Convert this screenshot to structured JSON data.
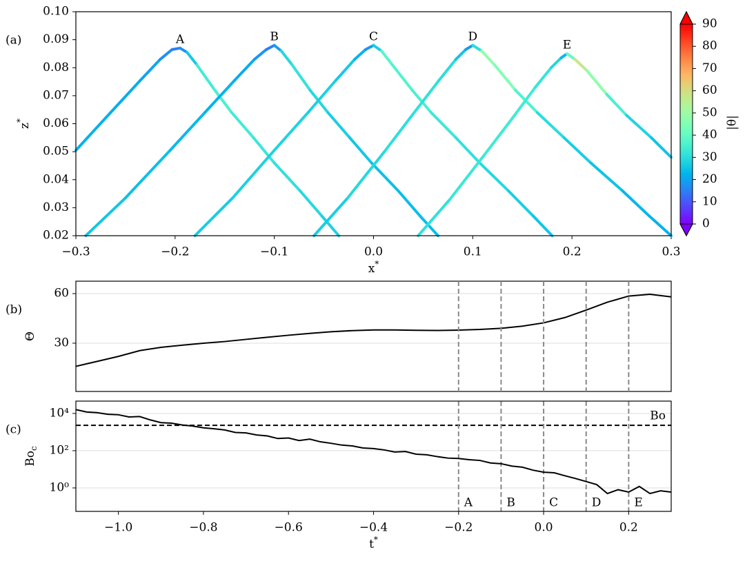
{
  "chart_data": [
    {
      "type": "colored_line",
      "panel_label": "(a)",
      "xlabel": {
        "text": "x",
        "sup": "*"
      },
      "ylabel": {
        "text": "z",
        "sup": "*"
      },
      "xlim": [
        -0.3,
        0.3
      ],
      "ylim": [
        0.02,
        0.1
      ],
      "xticks": [
        {
          "value": -0.3,
          "label": "−0.3"
        },
        {
          "value": -0.2,
          "label": "−0.2"
        },
        {
          "value": -0.1,
          "label": "−0.1"
        },
        {
          "value": 0,
          "label": "0.0"
        },
        0.1,
        0.2,
        0.3
      ],
      "yticks": [
        0.02,
        0.03,
        0.04,
        0.05,
        0.06,
        0.07,
        0.08,
        0.09,
        {
          "value": 0.1,
          "label": "0.10"
        }
      ],
      "series": [
        {
          "name": "A",
          "x": [
            -0.3,
            -0.265,
            -0.235,
            -0.215,
            -0.203,
            -0.195,
            -0.188,
            -0.178,
            -0.16,
            -0.143,
            -0.121,
            -0.1,
            -0.074,
            -0.052,
            -0.035
          ],
          "values": [
            0.0505,
            0.064,
            0.0755,
            0.083,
            0.0865,
            0.087,
            0.0855,
            0.081,
            0.072,
            0.064,
            0.055,
            0.046,
            0.036,
            0.027,
            0.02
          ],
          "theta": [
            22,
            22,
            21,
            19,
            16,
            14,
            20,
            32,
            36,
            35,
            33,
            32,
            30,
            28,
            27
          ]
        },
        {
          "name": "B",
          "x": [
            -0.29,
            -0.25,
            -0.205,
            -0.17,
            -0.14,
            -0.12,
            -0.108,
            -0.1,
            -0.093,
            -0.082,
            -0.064,
            -0.046,
            -0.024,
            -0.002,
            0.025,
            0.047,
            0.065
          ],
          "values": [
            0.02,
            0.0335,
            0.0505,
            0.064,
            0.0755,
            0.083,
            0.0865,
            0.088,
            0.086,
            0.081,
            0.072,
            0.064,
            0.055,
            0.046,
            0.036,
            0.027,
            0.02
          ],
          "theta": [
            26,
            25,
            24,
            23,
            22,
            20,
            17,
            13,
            25,
            33,
            30,
            28,
            26,
            25,
            24,
            24,
            24
          ]
        },
        {
          "name": "C",
          "x": [
            -0.18,
            -0.142,
            -0.1,
            -0.066,
            -0.038,
            -0.019,
            -0.008,
            0,
            0.008,
            0.019,
            0.039,
            0.058,
            0.083,
            0.107,
            0.136,
            0.161,
            0.18
          ],
          "values": [
            0.02,
            0.0335,
            0.0505,
            0.064,
            0.0755,
            0.083,
            0.0865,
            0.088,
            0.086,
            0.081,
            0.072,
            0.064,
            0.055,
            0.046,
            0.036,
            0.027,
            0.02
          ],
          "theta": [
            26,
            27,
            28,
            28,
            27,
            25,
            20,
            16,
            38,
            37,
            36,
            34,
            32,
            30,
            28,
            26,
            25
          ]
        },
        {
          "name": "D",
          "x": [
            -0.06,
            -0.026,
            0.012,
            0.041,
            0.066,
            0.083,
            0.093,
            0.1,
            0.109,
            0.122,
            0.143,
            0.165,
            0.192,
            0.219,
            0.251,
            0.278,
            0.3
          ],
          "values": [
            0.02,
            0.0335,
            0.0505,
            0.064,
            0.0755,
            0.083,
            0.0865,
            0.088,
            0.086,
            0.081,
            0.072,
            0.064,
            0.055,
            0.046,
            0.036,
            0.027,
            0.02
          ],
          "theta": [
            26,
            28,
            30,
            31,
            31,
            29,
            22,
            15,
            45,
            50,
            40,
            32,
            28,
            26,
            24,
            22,
            22
          ]
        },
        {
          "name": "E",
          "x": [
            0.045,
            0.077,
            0.112,
            0.14,
            0.163,
            0.179,
            0.189,
            0.195,
            0.203,
            0.215,
            0.235,
            0.255,
            0.28,
            0.3
          ],
          "values": [
            0.02,
            0.033,
            0.049,
            0.062,
            0.073,
            0.08,
            0.0835,
            0.085,
            0.083,
            0.079,
            0.0705,
            0.063,
            0.055,
            0.048
          ],
          "theta": [
            30,
            32,
            33,
            34,
            33,
            31,
            26,
            20,
            60,
            55,
            40,
            30,
            26,
            24
          ]
        }
      ],
      "colorbar": {
        "label": "|θ|",
        "clim": [
          0,
          90
        ],
        "ticks": [
          0,
          10,
          20,
          30,
          40,
          50,
          60,
          70,
          80,
          90
        ],
        "colormap": "rainbow",
        "extend": "both"
      }
    },
    {
      "type": "line",
      "panel_label": "(b)",
      "ylabel": {
        "text": "Θ"
      },
      "color": "#000000",
      "grid": true,
      "xlim": [
        -1.1,
        0.3
      ],
      "ylim": [
        0.8,
        67.5
      ],
      "yticks": [
        30,
        60
      ],
      "x": [
        -1.1,
        -1.05,
        -1.0,
        -0.95,
        -0.9,
        -0.85,
        -0.8,
        -0.75,
        -0.7,
        -0.65,
        -0.6,
        -0.55,
        -0.5,
        -0.45,
        -0.4,
        -0.35,
        -0.3,
        -0.25,
        -0.2,
        -0.15,
        -0.1,
        -0.05,
        0,
        0.05,
        0.1,
        0.15,
        0.2,
        0.25,
        0.3
      ],
      "values": [
        16,
        19,
        22,
        25.5,
        27.5,
        28.8,
        30,
        31,
        32.3,
        33.6,
        34.8,
        35.9,
        36.9,
        37.6,
        38,
        38,
        37.8,
        37.7,
        37.9,
        38.3,
        39,
        40.3,
        42.3,
        45.5,
        50,
        54.8,
        58.5,
        59.6,
        58
      ]
    },
    {
      "type": "line",
      "panel_label": "(c)",
      "xlabel": {
        "text": "t",
        "sup": "*"
      },
      "ylabel": {
        "text": "Bo",
        "sub": "c"
      },
      "color": "#000000",
      "grid": true,
      "ylog": true,
      "xlim": [
        -1.1,
        0.3
      ],
      "ylim": [
        0.055,
        46000
      ],
      "xticks": [
        {
          "value": -1.0,
          "label": "−1.0"
        },
        {
          "value": -0.8,
          "label": "−0.8"
        },
        {
          "value": -0.6,
          "label": "−0.6"
        },
        {
          "value": -0.4,
          "label": "−0.4"
        },
        {
          "value": -0.2,
          "label": "−0.2"
        },
        {
          "value": 0,
          "label": "0.0"
        },
        0.2
      ],
      "yticks": [
        {
          "value": 1,
          "label": "10⁰"
        },
        {
          "value": 100,
          "label": "10²"
        },
        {
          "value": 10000,
          "label": "10⁴"
        }
      ],
      "threshold": {
        "value": 2300,
        "label": "Bo"
      },
      "events": [
        {
          "x": -0.2,
          "label": "A"
        },
        {
          "x": -0.1,
          "label": "B"
        },
        {
          "x": 0,
          "label": "C"
        },
        {
          "x": 0.1,
          "label": "D"
        },
        {
          "x": 0.2,
          "label": "E"
        }
      ],
      "x": [
        -1.1,
        -1.075,
        -1.05,
        -1.025,
        -1.0,
        -0.975,
        -0.95,
        -0.925,
        -0.9,
        -0.875,
        -0.85,
        -0.825,
        -0.8,
        -0.775,
        -0.75,
        -0.725,
        -0.7,
        -0.675,
        -0.65,
        -0.625,
        -0.6,
        -0.575,
        -0.55,
        -0.525,
        -0.5,
        -0.475,
        -0.45,
        -0.425,
        -0.4,
        -0.375,
        -0.35,
        -0.325,
        -0.3,
        -0.275,
        -0.25,
        -0.225,
        -0.2,
        -0.175,
        -0.15,
        -0.125,
        -0.1,
        -0.075,
        -0.05,
        -0.025,
        0,
        0.025,
        0.05,
        0.075,
        0.1,
        0.125,
        0.15,
        0.175,
        0.2,
        0.225,
        0.25,
        0.275,
        0.3
      ],
      "values": [
        16000,
        12000,
        11000,
        9000,
        8500,
        6500,
        6800,
        4500,
        3200,
        3000,
        2400,
        2100,
        1700,
        1500,
        1300,
        950,
        900,
        700,
        620,
        450,
        480,
        350,
        420,
        300,
        250,
        200,
        180,
        140,
        130,
        110,
        85,
        90,
        65,
        60,
        48,
        40,
        38,
        33,
        30,
        22,
        20,
        15,
        13,
        9,
        7,
        6.5,
        4.5,
        3.2,
        2.2,
        1.5,
        0.5,
        0.8,
        0.6,
        1.2,
        0.5,
        0.7,
        0.6
      ]
    }
  ]
}
